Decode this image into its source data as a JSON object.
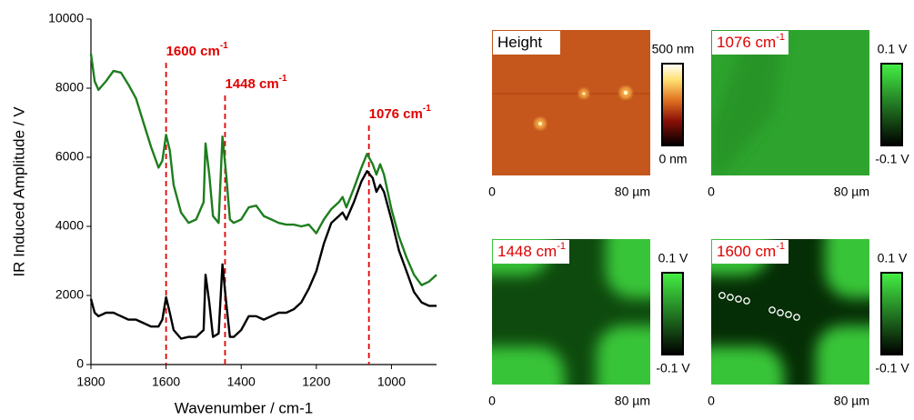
{
  "chart_data": {
    "type": "line",
    "xlabel": "Wavenumber / cm-1",
    "ylabel": "IR Induced Amplitude / V",
    "xlim": [
      1800,
      880
    ],
    "xticks": [
      1800,
      1600,
      1400,
      1200,
      1000
    ],
    "ylim": [
      0,
      10000
    ],
    "yticks": [
      0,
      2000,
      4000,
      6000,
      8000,
      10000
    ],
    "x": [
      1800,
      1790,
      1780,
      1760,
      1740,
      1720,
      1700,
      1680,
      1660,
      1640,
      1620,
      1610,
      1600,
      1590,
      1580,
      1560,
      1540,
      1520,
      1500,
      1495,
      1485,
      1475,
      1460,
      1450,
      1440,
      1430,
      1420,
      1400,
      1380,
      1360,
      1340,
      1320,
      1300,
      1280,
      1260,
      1240,
      1220,
      1200,
      1180,
      1160,
      1140,
      1130,
      1120,
      1100,
      1080,
      1065,
      1050,
      1040,
      1030,
      1020,
      1000,
      980,
      960,
      940,
      920,
      900,
      880
    ],
    "series": [
      {
        "color": "#1e7d1e",
        "values": [
          9000,
          8200,
          7950,
          8200,
          8500,
          8450,
          8100,
          7700,
          7000,
          6300,
          5700,
          5900,
          6650,
          6200,
          5200,
          4400,
          4100,
          4200,
          4700,
          6400,
          5500,
          4300,
          4100,
          6600,
          5500,
          4200,
          4100,
          4200,
          4550,
          4600,
          4300,
          4200,
          4100,
          4050,
          4050,
          4000,
          4050,
          3800,
          4200,
          4500,
          4700,
          4850,
          4550,
          5100,
          5700,
          6100,
          5800,
          5500,
          5800,
          5500,
          4500,
          3700,
          3100,
          2600,
          2300,
          2400,
          2600
        ]
      },
      {
        "color": "#000000",
        "values": [
          1900,
          1500,
          1400,
          1500,
          1500,
          1400,
          1300,
          1300,
          1200,
          1100,
          1100,
          1300,
          1950,
          1500,
          1000,
          750,
          800,
          800,
          1000,
          2600,
          1800,
          800,
          900,
          2900,
          1800,
          800,
          800,
          1000,
          1400,
          1400,
          1300,
          1400,
          1500,
          1500,
          1600,
          1800,
          2200,
          2700,
          3500,
          4100,
          4300,
          4400,
          4200,
          4700,
          5300,
          5600,
          5400,
          5000,
          5200,
          5000,
          4200,
          3300,
          2700,
          2100,
          1800,
          1700,
          1700
        ]
      }
    ],
    "annotations": [
      {
        "text": "1600 cm",
        "sup": "-1",
        "x": 1600
      },
      {
        "text": "1448 cm",
        "sup": "-1",
        "x": 1443
      },
      {
        "text": "1076 cm",
        "sup": "-1",
        "x": 1060
      }
    ]
  },
  "image_panels": [
    {
      "label": "Height",
      "colorbar_max": "500 nm",
      "colorbar_min": "0 nm",
      "x_start": "0",
      "x_end": "80 µm"
    },
    {
      "label": "1076 cm",
      "label_sup": "-1",
      "colorbar_max": "0.1 V",
      "colorbar_min": "-0.1 V",
      "x_start": "0",
      "x_end": "80 µm"
    },
    {
      "label": "1448 cm",
      "label_sup": "-1",
      "colorbar_max": "0.1 V",
      "colorbar_min": "-0.1 V",
      "x_start": "0",
      "x_end": "80 µm"
    },
    {
      "label": "1600 cm",
      "label_sup": "-1",
      "colorbar_max": "0.1 V",
      "colorbar_min": "-0.1 V",
      "x_start": "0",
      "x_end": "80 µm"
    }
  ]
}
